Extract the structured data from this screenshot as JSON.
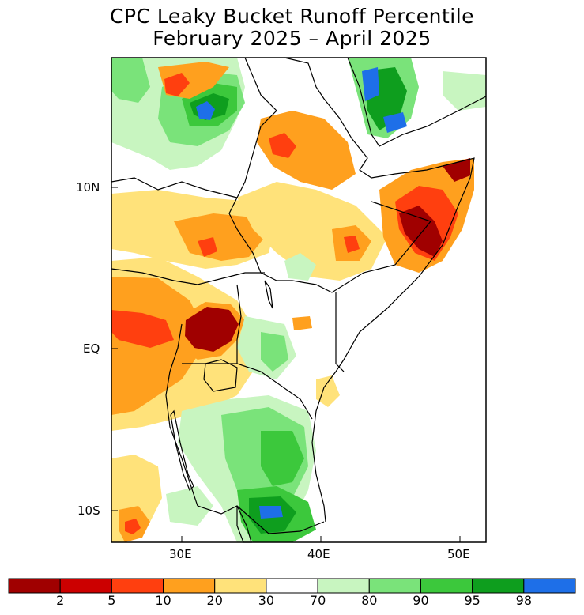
{
  "title": {
    "line1": "CPC Leaky Bucket Runoff Percentile",
    "line2": "February 2025 – April 2025"
  },
  "axes": {
    "lat_labels": [
      "10N",
      "EQ",
      "10S"
    ],
    "lon_labels": [
      "30E",
      "40E",
      "50E"
    ]
  },
  "colorbar": {
    "labels": [
      "2",
      "5",
      "10",
      "20",
      "30",
      "70",
      "80",
      "90",
      "95",
      "98"
    ],
    "colors": [
      "#a00000",
      "#cc0000",
      "#ff3f0f",
      "#ffa01e",
      "#ffe27a",
      "#ffffff",
      "#c8f5c0",
      "#7ae37a",
      "#3cc83c",
      "#0e9e1e",
      "#1e6fe8"
    ]
  },
  "map_colors": {
    "very_dry": "#a00000",
    "dry_red": "#e8401c",
    "dry_orange": "#ffa01e",
    "dry_yellow": "#ffe27a",
    "wet_light": "#c8f5c0",
    "wet_mid": "#7ae37a",
    "wet_strong": "#3cc83c",
    "wet_dark": "#0e9e1e",
    "wet_extreme": "#1e6fe8"
  }
}
